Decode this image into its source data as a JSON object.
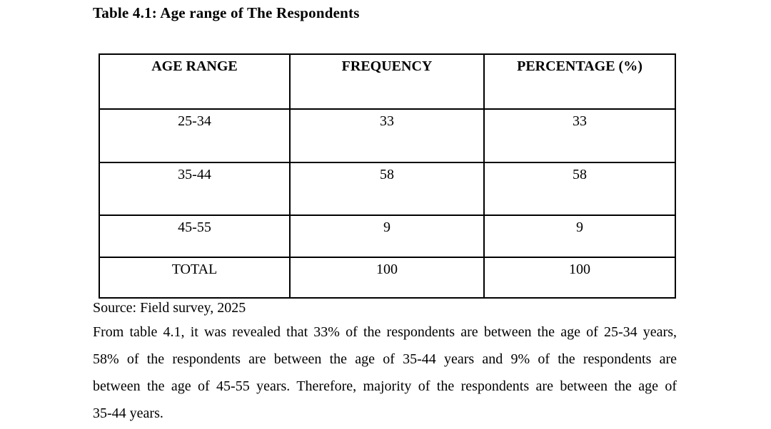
{
  "page": {
    "title": "Table 4.1: Age range of The Respondents",
    "source_note": "Source: Field survey, 2025"
  },
  "table": {
    "headers": [
      "AGE RANGE",
      "FREQUENCY",
      "PERCENTAGE (%)"
    ],
    "rows": [
      {
        "age_range": "25-34",
        "frequency": "33",
        "percentage": "33"
      },
      {
        "age_range": "35-44",
        "frequency": "58",
        "percentage": "58"
      },
      {
        "age_range": "45-55",
        "frequency": "9",
        "percentage": "9"
      }
    ],
    "total_row": {
      "label": "TOTAL",
      "frequency": "100",
      "percentage": "100"
    }
  },
  "paragraph": {
    "lines": [
      "From table 4.1, it was revealed that 33% of the respondents are between the age of 25-34 years,",
      "58% of the respondents are between the age of 35-44 years and 9% of the respondents are",
      "between the age of 45-55 years. Therefore, majority of the respondents are between the age of",
      "35-44 years."
    ]
  },
  "colors": {
    "text": "#000000",
    "background": "#ffffff",
    "table_border": "#000000"
  }
}
